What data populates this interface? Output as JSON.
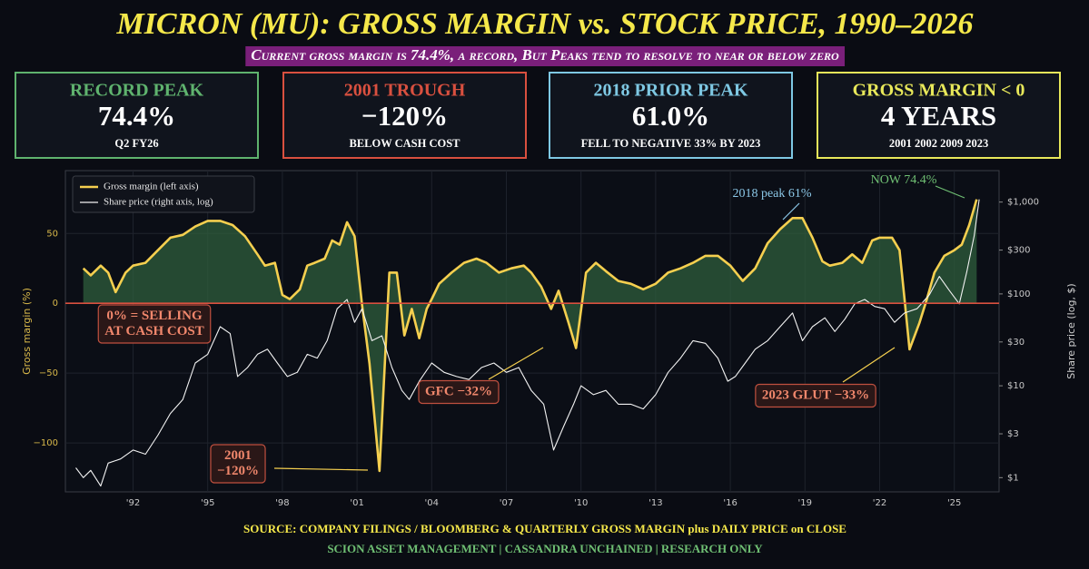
{
  "title": "MICRON (MU): GROSS MARGIN vs. STOCK PRICE, 1990–2026",
  "subtitle": "Current gross margin is 74.4%, a record, But Peaks tend to resolve to near or below zero",
  "cards": [
    {
      "label": "RECORD PEAK",
      "value": "74.4%",
      "note": "Q2 FY26",
      "color": "#5fb36e"
    },
    {
      "label": "2001 TROUGH",
      "value": "−120%",
      "note": "BELOW CASH COST",
      "color": "#d9503f"
    },
    {
      "label": "2018 PRIOR PEAK",
      "value": "61.0%",
      "note": "FELL TO NEGATIVE 33% BY 2023",
      "color": "#7ec8e3"
    },
    {
      "label": "GROSS MARGIN < 0",
      "value": "4 YEARS",
      "note": "2001 2002 2009 2023",
      "color": "#e8e85a"
    }
  ],
  "chart_data": {
    "type": "line",
    "ylabel": "Gross margin (%)",
    "y2label": "Share price (log, $)",
    "xlim": [
      1989.5,
      2026.8
    ],
    "xticks": [
      {
        "value": 1992,
        "label": "'92"
      },
      {
        "value": 1995,
        "label": "'95"
      },
      {
        "value": 1998,
        "label": "'98"
      },
      {
        "value": 2001,
        "label": "'01"
      },
      {
        "value": 2004,
        "label": "'04"
      },
      {
        "value": 2007,
        "label": "'07"
      },
      {
        "value": 2010,
        "label": "'10"
      },
      {
        "value": 2013,
        "label": "'13"
      },
      {
        "value": 2016,
        "label": "'16"
      },
      {
        "value": 2019,
        "label": "'19"
      },
      {
        "value": 2022,
        "label": "'22"
      },
      {
        "value": 2025,
        "label": "'25"
      }
    ],
    "ylim": [
      -135,
      95
    ],
    "yticks": [
      {
        "value": -100,
        "label": "−100"
      },
      {
        "value": -50,
        "label": "−50"
      },
      0,
      50
    ],
    "y2lim": [
      0.7,
      2200
    ],
    "y2scale": "log",
    "y2ticks": [
      {
        "value": 1,
        "label": "$1"
      },
      {
        "value": 3,
        "label": "$3"
      },
      {
        "value": 10,
        "label": "$10"
      },
      {
        "value": 30,
        "label": "$30"
      },
      {
        "value": 100,
        "label": "$100"
      },
      {
        "value": 300,
        "label": "$300"
      },
      {
        "value": 1000,
        "label": "$1,000"
      }
    ],
    "grid": true,
    "legend": "upper left",
    "series": [
      {
        "name": "Gross margin (left axis)",
        "color": "#f5cf4f",
        "fill": "#2f5e3c",
        "x": [
          1990.0,
          1990.3,
          1990.7,
          1991.0,
          1991.3,
          1991.7,
          1992.0,
          1992.5,
          1993.0,
          1993.5,
          1994.0,
          1994.5,
          1995.0,
          1995.5,
          1996.0,
          1996.5,
          1997.0,
          1997.3,
          1997.7,
          1998.0,
          1998.3,
          1998.7,
          1999.0,
          1999.3,
          1999.7,
          2000.0,
          2000.3,
          2000.6,
          2000.9,
          2001.2,
          2001.5,
          2001.9,
          2002.3,
          2002.6,
          2002.9,
          2003.2,
          2003.5,
          2003.8,
          2004.0,
          2004.3,
          2004.8,
          2005.3,
          2005.8,
          2006.2,
          2006.7,
          2007.2,
          2007.7,
          2008.0,
          2008.4,
          2008.8,
          2009.1,
          2009.5,
          2009.8,
          2010.2,
          2010.6,
          2011.0,
          2011.5,
          2012.0,
          2012.5,
          2013.0,
          2013.5,
          2014.0,
          2014.5,
          2015.0,
          2015.5,
          2016.0,
          2016.5,
          2017.0,
          2017.5,
          2018.0,
          2018.5,
          2018.9,
          2019.3,
          2019.7,
          2020.0,
          2020.5,
          2020.9,
          2021.3,
          2021.7,
          2022.0,
          2022.5,
          2022.8,
          2023.0,
          2023.2,
          2023.6,
          2023.9,
          2024.2,
          2024.6,
          2025.0,
          2025.3,
          2025.6,
          2025.9
        ],
        "values": [
          25,
          20,
          27,
          22,
          8,
          22,
          27,
          29,
          38,
          47,
          49,
          55,
          59,
          59,
          56,
          48,
          35,
          27,
          29,
          6,
          3,
          10,
          27,
          29,
          32,
          45,
          42,
          58,
          48,
          -1,
          -43,
          -120,
          22,
          22,
          -23,
          -4,
          -25,
          -4,
          3,
          14,
          22,
          29,
          32,
          29,
          22,
          25,
          27,
          22,
          12,
          -4,
          9,
          -14,
          -32,
          22,
          29,
          23,
          16,
          14,
          10,
          14,
          22,
          25,
          29,
          34,
          34,
          27,
          16,
          25,
          43,
          53,
          61,
          61,
          47,
          30,
          27,
          29,
          35,
          29,
          45,
          47,
          47,
          38,
          3,
          -33,
          -14,
          3,
          22,
          34,
          38,
          42,
          56,
          74.4
        ]
      },
      {
        "name": "Share price (right axis, log)",
        "color": "#f2f2f2",
        "axis": "y2",
        "x": [
          1989.7,
          1990.0,
          1990.3,
          1990.7,
          1991.0,
          1991.5,
          1992.0,
          1992.5,
          1993.0,
          1993.5,
          1994.0,
          1994.5,
          1995.0,
          1995.5,
          1995.9,
          1996.2,
          1996.6,
          1997.0,
          1997.4,
          1997.8,
          1998.2,
          1998.6,
          1999.0,
          1999.4,
          1999.8,
          2000.2,
          2000.6,
          2000.9,
          2001.2,
          2001.6,
          2002.0,
          2002.4,
          2002.8,
          2003.1,
          2003.5,
          2004.0,
          2004.5,
          2005.0,
          2005.5,
          2006.0,
          2006.5,
          2007.0,
          2007.5,
          2008.0,
          2008.5,
          2008.9,
          2009.3,
          2009.7,
          2010.0,
          2010.5,
          2011.0,
          2011.5,
          2012.0,
          2012.5,
          2013.0,
          2013.5,
          2014.0,
          2014.5,
          2015.0,
          2015.5,
          2015.9,
          2016.2,
          2016.6,
          2017.0,
          2017.5,
          2018.0,
          2018.5,
          2018.9,
          2019.3,
          2019.8,
          2020.2,
          2020.6,
          2021.0,
          2021.4,
          2021.8,
          2022.2,
          2022.6,
          2023.0,
          2023.5,
          2024.0,
          2024.4,
          2024.8,
          2025.2,
          2025.5,
          2025.8,
          2026.0
        ],
        "values": [
          1.28,
          1.0,
          1.2,
          0.81,
          1.44,
          1.6,
          2.0,
          1.8,
          2.9,
          5.0,
          7.1,
          17.7,
          22,
          44,
          37,
          12.6,
          15.8,
          22,
          25,
          17.7,
          12.6,
          14,
          22,
          20,
          31,
          69,
          87,
          49,
          69,
          31,
          35,
          15.8,
          8.9,
          7.1,
          11.2,
          17.7,
          14,
          12.6,
          11.7,
          15.8,
          17.7,
          14,
          15.8,
          8.9,
          6.3,
          2.0,
          3.6,
          6.3,
          10,
          8,
          8.9,
          6.3,
          6.3,
          5.6,
          8,
          14,
          20,
          31,
          29,
          20,
          11.2,
          12.6,
          17.7,
          25,
          31,
          44,
          62,
          31,
          44,
          55,
          39,
          53,
          78,
          87,
          73,
          69,
          49,
          62,
          69,
          98,
          155,
          109,
          78,
          173,
          430,
          1070
        ]
      }
    ],
    "annotations": [
      {
        "text": [
          "2018 peak 61%"
        ],
        "color": "#8cc8e8"
      },
      {
        "text": [
          "NOW 74.4%"
        ],
        "color": "#6fbf73"
      },
      {
        "text": [
          "0% = SELLING",
          "AT CASH COST"
        ],
        "color": "#f0876c"
      },
      {
        "text": [
          "GFC −32%"
        ],
        "color": "#f0876c"
      },
      {
        "text": [
          "2023 GLUT −33%"
        ],
        "color": "#f0876c"
      },
      {
        "text": [
          "2001",
          "−120%"
        ],
        "color": "#f0876c"
      }
    ]
  },
  "footer": [
    {
      "text": "SOURCE: COMPANY FILINGS / BLOOMBERG & QUARTERLY GROSS MARGIN plus DAILY PRICE on CLOSE",
      "color": "#f5e84a"
    },
    {
      "text": "SCION ASSET MANAGEMENT | CASSANDRA UNCHAINED | RESEARCH ONLY",
      "color": "#6fbf73"
    }
  ]
}
